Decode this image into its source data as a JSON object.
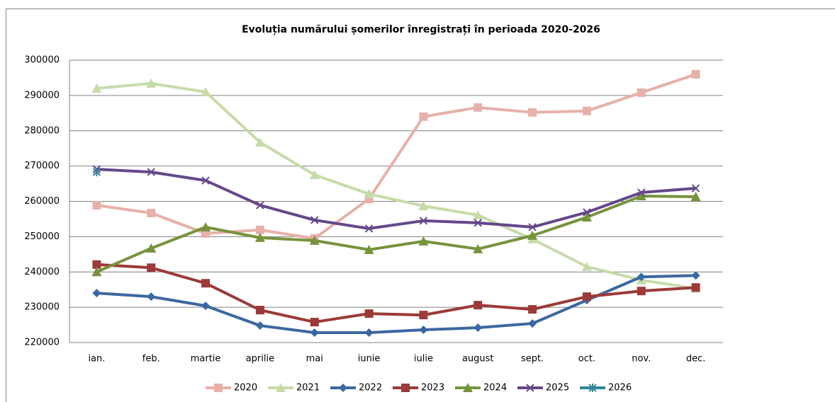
{
  "chart_data": {
    "type": "line",
    "title": "Evoluția numărului  șomerilor înregistrați în perioada 2020-2026",
    "categories": [
      "ian.",
      "feb.",
      "martie",
      "aprilie",
      "mai",
      "iunie",
      "iulie",
      "august",
      "sept.",
      "oct.",
      "nov.",
      "dec."
    ],
    "ylim": [
      220000,
      300000
    ],
    "yticks": [
      220000,
      230000,
      240000,
      250000,
      260000,
      270000,
      280000,
      290000,
      300000
    ],
    "grid": true,
    "legend": "bottom",
    "series": [
      {
        "name": "2020",
        "color": "#e6b1aa",
        "marker": "square",
        "values": [
          258900,
          256700,
          250900,
          251900,
          249500,
          260700,
          284000,
          286600,
          285200,
          285600,
          290800,
          296000
        ]
      },
      {
        "name": "2021",
        "color": "#c7dba9",
        "marker": "triangle",
        "values": [
          292000,
          293400,
          291000,
          276700,
          267500,
          262100,
          258700,
          256100,
          249300,
          241500,
          237700,
          235300
        ]
      },
      {
        "name": "2022",
        "color": "#3b68a0",
        "marker": "diamond",
        "values": [
          234000,
          233000,
          230400,
          224800,
          222800,
          222800,
          223600,
          224200,
          225400,
          232000,
          238600,
          239000
        ]
      },
      {
        "name": "2023",
        "color": "#9b3a38",
        "marker": "square",
        "values": [
          242100,
          241200,
          236800,
          229200,
          225800,
          228200,
          227800,
          230600,
          229400,
          233000,
          234600,
          235600
        ]
      },
      {
        "name": "2024",
        "color": "#77933c",
        "marker": "triangle",
        "values": [
          240000,
          246700,
          252700,
          249700,
          248900,
          246300,
          248700,
          246500,
          250300,
          255500,
          261500,
          261300
        ]
      },
      {
        "name": "2025",
        "color": "#65478a",
        "marker": "x",
        "values": [
          269100,
          268300,
          265900,
          258900,
          254700,
          252300,
          254500,
          253900,
          252700,
          256900,
          262500,
          263700
        ]
      },
      {
        "name": "2026",
        "color": "#31849b",
        "marker": "star",
        "values": [
          268300,
          null,
          null,
          null,
          null,
          null,
          null,
          null,
          null,
          null,
          null,
          null
        ]
      }
    ]
  }
}
